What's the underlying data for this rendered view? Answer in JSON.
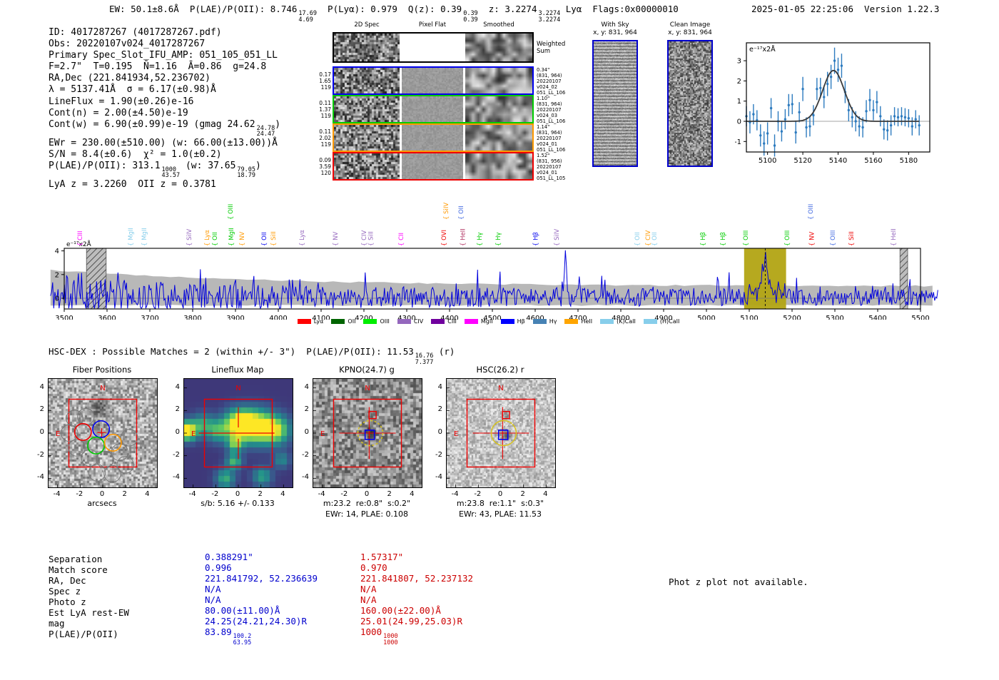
{
  "header": {
    "summary_segments": [
      {
        "t": "EW: 50.1±8.6Å  P(LAE)/P(OII): 8.746"
      },
      {
        "f": [
          "17.69",
          "4.69"
        ]
      },
      {
        "t": "  P(Lyα): 0.979  Q(z): 0.39"
      },
      {
        "f": [
          "0.39",
          "0.39"
        ]
      },
      {
        "t": "  z: 3.2274"
      },
      {
        "f": [
          "3.2274",
          "3.2274"
        ]
      },
      {
        "t": " Lyα  Flags:0x00000010"
      }
    ],
    "timestamp_version": "2025-01-05 22:25:06  Version 1.22.3"
  },
  "info_lines": [
    [
      {
        "t": "ID: 4017287267 (4017287267.pdf)"
      }
    ],
    [
      {
        "t": "Obs: 20220107v024_4017287267"
      }
    ],
    [
      {
        "t": "Primary Spec_Slot_IFU_AMP: 051_105_051_LL"
      }
    ],
    [
      {
        "t": "F=2.7\"  T=0.195  N̄=1.16  Ā=0.86  g=24.8"
      }
    ],
    [
      {
        "t": "RA,Dec (221.841934,52.236702)"
      }
    ],
    [
      {
        "t": "λ = 5137.41Å  σ = 6.17(±0.98)Å"
      }
    ],
    [
      {
        "t": "LineFlux = 1.90(±0.26)e-16"
      }
    ],
    [
      {
        "t": "Cont(n) = 2.00(±4.50)e-19"
      }
    ],
    [
      {
        "t": "Cont(w) = 6.90(±0.99)e-19 (gmag 24.62"
      },
      {
        "f": [
          "24.78",
          "24.47"
        ]
      },
      {
        "t": ")"
      }
    ],
    [
      {
        "t": "EWr = 230.00(±510.00) (w: 66.00(±13.00))Å"
      }
    ],
    [
      {
        "t": "S/N = 8.4(±0.6)  χ² = 1.0(±0.2)"
      }
    ],
    [
      {
        "t": "P(LAE)/P(OII): 313.1"
      },
      {
        "f": [
          "1000",
          "43.57"
        ]
      },
      {
        "t": " (w: 37.65"
      },
      {
        "f": [
          "79.05",
          "18.79"
        ]
      },
      {
        "t": ")"
      }
    ],
    [
      {
        "t": "LyA z = 3.2260  OII z = 0.3781"
      }
    ]
  ],
  "spec2d": {
    "col_headers": [
      "2D Spec",
      "Pixel Flat",
      "Smoothed"
    ],
    "rows": [
      {
        "border": "#000000",
        "left": [],
        "right": [
          "Weighted",
          "Sum"
        ]
      },
      {
        "border": "#0000ee",
        "left": [
          "0.17",
          "1.65",
          "119"
        ],
        "right": [
          "0.34\"",
          "(831, 964)",
          "20220107",
          "v024_02",
          "051_LL_106"
        ]
      },
      {
        "border": "#00cc00",
        "left": [
          "0.11",
          "1.37",
          "119"
        ],
        "right": [
          "1.10\"",
          "(831, 964)",
          "20220107",
          "v024_03",
          "051_LL_106"
        ]
      },
      {
        "border": "#ff9900",
        "left": [
          "0.11",
          "2.02",
          "119"
        ],
        "right": [
          "1.14\"",
          "(831, 964)",
          "20220107",
          "v024_01",
          "051_LL_106"
        ]
      },
      {
        "border": "#ee0000",
        "left": [
          "0.09",
          "3.59",
          "120"
        ],
        "right": [
          "1.52\"",
          "(831, 956)",
          "20220107",
          "v024_01",
          "051_LL_105"
        ]
      }
    ]
  },
  "with_sky": {
    "title": "With Sky",
    "coords": "x, y: 831, 964"
  },
  "clean_image": {
    "title": "Clean Image",
    "coords": "x, y: 831, 964"
  },
  "hsc_dex_segments": [
    {
      "t": "HSC-DEX : Possible Matches = 2 (within +/- 3\")  P(LAE)/P(OII): 11.53"
    },
    {
      "f": [
        "16.76",
        "7.377"
      ]
    },
    {
      "t": " (r)"
    }
  ],
  "phot_z_note": "Phot z plot not available.",
  "chart_data": [
    {
      "type": "scatter",
      "name": "line-fit-inset",
      "unit_label": "e⁻¹⁷x2Å",
      "xlim": [
        5087,
        5192
      ],
      "ylim": [
        -1.55,
        3.9
      ],
      "xticks": [
        5100,
        5120,
        5140,
        5160,
        5180
      ],
      "yticks": [
        -1,
        0,
        1,
        2,
        3
      ],
      "marker_color": "#2d7bbf",
      "fit_color": "#3a3a3a",
      "fit": {
        "shape": "gaussian",
        "center": 5137.41,
        "sigma": 6.17,
        "amplitude": 2.52
      },
      "x": [
        5088,
        5090,
        5092,
        5094,
        5096,
        5098,
        5100,
        5102,
        5104,
        5106,
        5108,
        5110,
        5112,
        5114,
        5116,
        5118,
        5120,
        5122,
        5124,
        5126,
        5128,
        5130,
        5132,
        5134,
        5136,
        5138,
        5140,
        5142,
        5144,
        5146,
        5148,
        5150,
        5152,
        5154,
        5156,
        5158,
        5160,
        5162,
        5164,
        5166,
        5168,
        5170,
        5172,
        5174,
        5176,
        5178,
        5180,
        5182,
        5184,
        5186
      ],
      "y": [
        0.25,
        -0.05,
        0.35,
        0.05,
        -0.7,
        -1.1,
        -0.6,
        0.65,
        -1.2,
        0.0,
        -0.5,
        0.1,
        0.8,
        0.85,
        -0.55,
        0.45,
        1.6,
        -0.3,
        -0.25,
        0.3,
        1.6,
        1.65,
        1.2,
        1.85,
        2.2,
        3.0,
        2.55,
        2.75,
        1.45,
        0.55,
        0.2,
        0.0,
        -0.25,
        -0.3,
        0.5,
        1.05,
        0.55,
        0.95,
        0.25,
        -0.4,
        -0.45,
        -0.2,
        0.25,
        0.2,
        0.25,
        0.2,
        0.15,
        -0.25,
        0.1,
        -0.2
      ],
      "yerr": [
        0.5,
        0.55,
        0.5,
        0.5,
        0.55,
        0.6,
        0.55,
        0.5,
        0.55,
        0.5,
        0.5,
        0.5,
        0.55,
        0.5,
        0.55,
        0.5,
        0.6,
        0.5,
        0.5,
        0.5,
        0.55,
        0.5,
        0.55,
        0.6,
        0.6,
        0.65,
        0.6,
        0.6,
        0.55,
        0.55,
        0.5,
        0.5,
        0.5,
        0.5,
        0.55,
        0.55,
        0.5,
        0.55,
        0.5,
        0.5,
        0.5,
        0.5,
        0.45,
        0.45,
        0.45,
        0.45,
        0.45,
        0.45,
        0.45,
        0.5
      ]
    },
    {
      "type": "line",
      "name": "full-spectrum",
      "unit_label": "e⁻¹⁷x2Å",
      "xlim": [
        3465,
        5545
      ],
      "ylim": [
        -0.92,
        4.25
      ],
      "xticks": [
        3500,
        3600,
        3700,
        3800,
        3900,
        4000,
        4100,
        4200,
        4300,
        4400,
        4500,
        4600,
        4700,
        4800,
        4900,
        5000,
        5100,
        5200,
        5300,
        5400,
        5500
      ],
      "yticks": [
        0,
        2,
        4
      ],
      "line_color": "#0000dd",
      "error_band_color": "#b8b8b8",
      "highlight_band": {
        "x0": 5088,
        "x1": 5186,
        "color": "#b2a413"
      },
      "line_center": {
        "x": 5137.41,
        "style": "dashed"
      },
      "masked_bands": [
        [
          3552,
          3598
        ],
        [
          5452,
          5470
        ]
      ],
      "emission_peak": {
        "x": 5137.41,
        "height": 3.2
      },
      "legend": [
        {
          "label": "Lyα",
          "color": "#ff0000"
        },
        {
          "label": "OII",
          "color": "#006400"
        },
        {
          "label": "OIII",
          "color": "#00ee00"
        },
        {
          "label": "CIV",
          "color": "#9467bd"
        },
        {
          "label": "CIII",
          "color": "#70009e"
        },
        {
          "label": "MgII",
          "color": "#ff00ff"
        },
        {
          "label": "Hβ",
          "color": "#0000ff"
        },
        {
          "label": "Hγ",
          "color": "#4682b4"
        },
        {
          "label": "HeII",
          "color": "#ffa500"
        },
        {
          "label": "(K)CaII",
          "color": "#87ceeb"
        },
        {
          "label": "(H)CaII",
          "color": "#87ceeb"
        }
      ],
      "line_labels": [
        {
          "label": "CIII",
          "x": 3537,
          "color": "#ff00ff",
          "level": 0
        },
        {
          "label": "MgII",
          "x": 3655,
          "color": "#87ceeb",
          "level": 0
        },
        {
          "label": "MgII",
          "x": 3687,
          "color": "#87ceeb",
          "level": 0
        },
        {
          "label": "SiIV",
          "x": 3792,
          "color": "#9467bd",
          "level": 0
        },
        {
          "label": "Lyα",
          "x": 3833,
          "color": "#ff9900",
          "level": 0
        },
        {
          "label": "OII",
          "x": 3852,
          "color": "#00cc00",
          "level": 0
        },
        {
          "label": "OIII",
          "x": 3888,
          "color": "#00cc00",
          "level": 1
        },
        {
          "label": "MgII",
          "x": 3890,
          "color": "#00cc00",
          "level": 0
        },
        {
          "label": "NV",
          "x": 3915,
          "color": "#ff9900",
          "level": 0
        },
        {
          "label": "OII",
          "x": 3967,
          "color": "#0000ee",
          "level": 0
        },
        {
          "label": "SiII",
          "x": 3988,
          "color": "#ff9900",
          "level": 0
        },
        {
          "label": "Lyα",
          "x": 4055,
          "color": "#9467bd",
          "level": 0
        },
        {
          "label": "NV",
          "x": 4133,
          "color": "#9467bd",
          "level": 0
        },
        {
          "label": "CIV",
          "x": 4200,
          "color": "#9467bd",
          "level": 0
        },
        {
          "label": "SiII",
          "x": 4216,
          "color": "#9467bd",
          "level": 0
        },
        {
          "label": "CII",
          "x": 4287,
          "color": "#ff00ff",
          "level": 0
        },
        {
          "label": "OVI",
          "x": 4387,
          "color": "#ee0000",
          "level": 0
        },
        {
          "label": "SiIV",
          "x": 4392,
          "color": "#ff9900",
          "level": 1
        },
        {
          "label": "OII",
          "x": 4427,
          "color": "#4169e1",
          "level": 1
        },
        {
          "label": "HeII",
          "x": 4431,
          "color": "#b03060",
          "level": 0
        },
        {
          "label": "Hγ",
          "x": 4470,
          "color": "#00cc00",
          "level": 0
        },
        {
          "label": "Hγ",
          "x": 4513,
          "color": "#00cc00",
          "level": 0
        },
        {
          "label": "Hβ",
          "x": 4601,
          "color": "#0000ee",
          "level": 0
        },
        {
          "label": "SiIV",
          "x": 4650,
          "color": "#9467bd",
          "level": 0
        },
        {
          "label": "OII",
          "x": 4838,
          "color": "#87ceeb",
          "level": 0
        },
        {
          "label": "CIV",
          "x": 4863,
          "color": "#ff9900",
          "level": 0
        },
        {
          "label": "OII",
          "x": 4878,
          "color": "#87ceeb",
          "level": 0
        },
        {
          "label": "Hβ",
          "x": 4992,
          "color": "#00cc00",
          "level": 0
        },
        {
          "label": "Hβ",
          "x": 5038,
          "color": "#00cc00",
          "level": 0
        },
        {
          "label": "OIII",
          "x": 5092,
          "color": "#00cc00",
          "level": 0
        },
        {
          "label": "OIII",
          "x": 5188,
          "color": "#00cc00",
          "level": 0
        },
        {
          "label": "OIII",
          "x": 5243,
          "color": "#4169e1",
          "level": 1
        },
        {
          "label": "NV",
          "x": 5246,
          "color": "#ee0000",
          "level": 0
        },
        {
          "label": "OIII",
          "x": 5295,
          "color": "#4169e1",
          "level": 0
        },
        {
          "label": "SiII",
          "x": 5338,
          "color": "#ee0000",
          "level": 0
        },
        {
          "label": "HeII",
          "x": 5437,
          "color": "#9467bd",
          "level": 0
        }
      ]
    }
  ],
  "cutouts": {
    "compass_n": "N",
    "compass_e": "E",
    "ticks": [
      -4,
      -2,
      0,
      2,
      4
    ],
    "panels": [
      {
        "title": "Fiber Positions",
        "xlabel": "arcsecs",
        "caption": ""
      },
      {
        "title": "Lineflux Map",
        "xlabel": "s/b: 5.16 +/- 0.133",
        "caption": ""
      },
      {
        "title": "KPNO(24.7) g",
        "xlabel": "m:23.2  re:0.8\"  s:0.2\"",
        "caption": "EWr: 14, PLAE: 0.108"
      },
      {
        "title": "HSC(26.2) r",
        "xlabel": "m:23.8  re:1.1\"  s:0.3\"",
        "caption": "EWr: 43, PLAE: 11.53"
      }
    ]
  },
  "match_table": {
    "row_labels": [
      "Separation",
      "Match score",
      "RA, Dec",
      "Spec z",
      "Photo z",
      "Est LyA rest-EW",
      "mag",
      "P(LAE)/P(OII)"
    ],
    "columns": [
      {
        "color": "#0000cd",
        "cells": [
          [
            {
              "t": "0.388291\""
            }
          ],
          [
            {
              "t": "0.996"
            }
          ],
          [
            {
              "t": "221.841792, 52.236639"
            }
          ],
          [
            {
              "t": "N/A"
            }
          ],
          [
            {
              "t": "N/A"
            }
          ],
          [
            {
              "t": "80.00(±11.00)Å"
            }
          ],
          [
            {
              "t": "24.25(24.21,24.30)R"
            }
          ],
          [
            {
              "t": "83.89"
            },
            {
              "f": [
                "100.2",
                "63.95"
              ]
            }
          ]
        ]
      },
      {
        "color": "#cc0000",
        "cells": [
          [
            {
              "t": "1.57317\""
            }
          ],
          [
            {
              "t": "0.970"
            }
          ],
          [
            {
              "t": "221.841807, 52.237132"
            }
          ],
          [
            {
              "t": "N/A"
            }
          ],
          [
            {
              "t": "N/A"
            }
          ],
          [
            {
              "t": "160.00(±22.00)Å"
            }
          ],
          [
            {
              "t": "25.01(24.99,25.03)R"
            }
          ],
          [
            {
              "t": "1000"
            },
            {
              "f": [
                "1000",
                "1000"
              ]
            }
          ]
        ]
      }
    ]
  }
}
